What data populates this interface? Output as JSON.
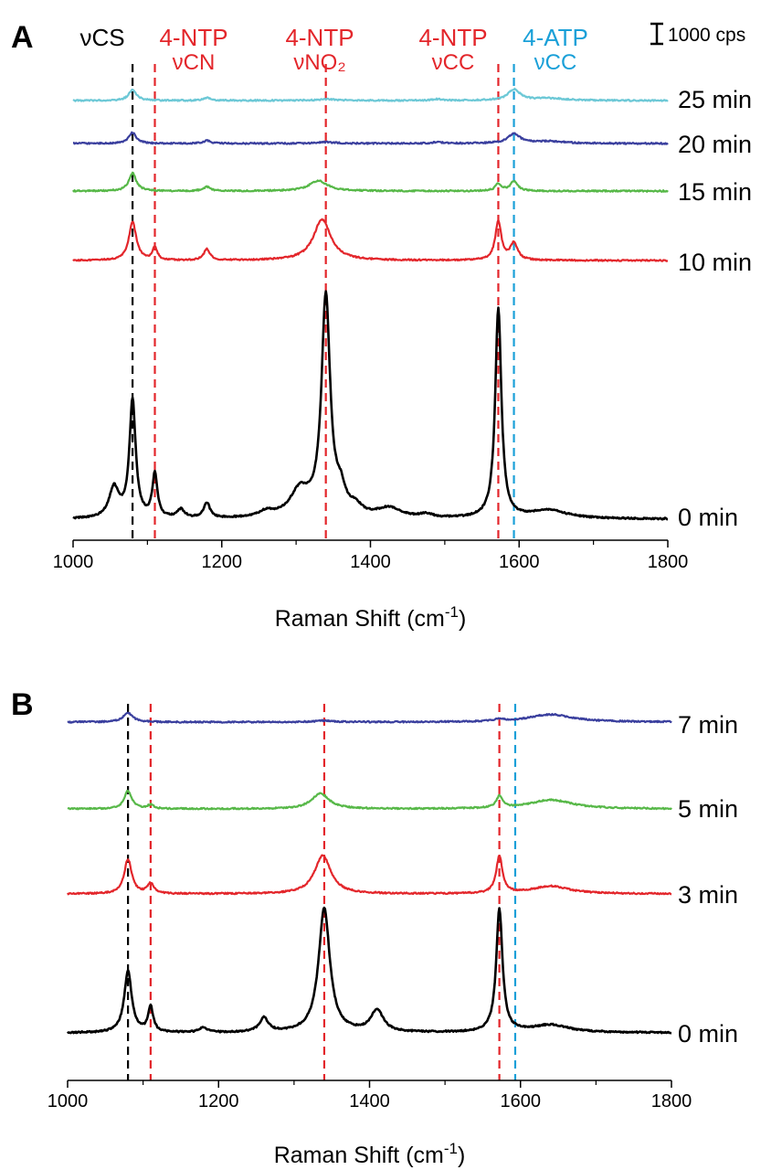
{
  "chart_data": [
    {
      "type": "line",
      "panel_label": "A",
      "xlabel_main": "Raman Shift (cm",
      "xlabel_sup": "-1",
      "xlabel_end": ")",
      "xlim": [
        1000,
        1800
      ],
      "x_ticks": [
        1000,
        1200,
        1400,
        1600,
        1800
      ],
      "scale_bar": {
        "label": "1000 cps",
        "value": 1000
      },
      "peak_labels": [
        {
          "line1": "νCS",
          "line2": "",
          "x": 1080,
          "color": "#000000"
        },
        {
          "line1": "4-NTP",
          "line2": "νCN",
          "x": 1110,
          "color": "#e3262b"
        },
        {
          "line1": "4-NTP",
          "line2": "νNO₂",
          "x": 1340,
          "color": "#e3262b"
        },
        {
          "line1": "4-NTP",
          "line2": "νCC",
          "x": 1572,
          "color": "#e3262b"
        },
        {
          "line1": "4-ATP",
          "line2": "νCC",
          "x": 1593,
          "color": "#1aa0d8"
        }
      ],
      "series": [
        {
          "name": "25 min",
          "color": "#6cc8d6",
          "baseline": 0,
          "peaks": [
            [
              1080,
              80,
              6
            ],
            [
              1180,
              20,
              6
            ],
            [
              1340,
              10,
              15
            ],
            [
              1490,
              10,
              8
            ],
            [
              1593,
              80,
              10
            ],
            [
              1640,
              15,
              25
            ]
          ]
        },
        {
          "name": "20 min",
          "color": "#3a3f9e",
          "baseline": 0,
          "peaks": [
            [
              1080,
              80,
              6
            ],
            [
              1180,
              20,
              6
            ],
            [
              1340,
              10,
              15
            ],
            [
              1490,
              10,
              8
            ],
            [
              1593,
              70,
              10
            ],
            [
              1640,
              15,
              25
            ]
          ]
        },
        {
          "name": "15 min",
          "color": "#57b848",
          "baseline": 0,
          "peaks": [
            [
              1080,
              130,
              6
            ],
            [
              1180,
              30,
              6
            ],
            [
              1330,
              75,
              15
            ],
            [
              1572,
              50,
              5
            ],
            [
              1593,
              70,
              6
            ]
          ]
        },
        {
          "name": "10 min",
          "color": "#e3262b",
          "baseline": 0,
          "peaks": [
            [
              1080,
              280,
              6
            ],
            [
              1110,
              90,
              4
            ],
            [
              1180,
              80,
              5
            ],
            [
              1335,
              300,
              14
            ],
            [
              1572,
              280,
              5
            ],
            [
              1593,
              120,
              6
            ]
          ]
        },
        {
          "name": "0 min",
          "color": "#000000",
          "baseline": 0,
          "peaks": [
            [
              1055,
              220,
              8
            ],
            [
              1080,
              860,
              5
            ],
            [
              1110,
              320,
              4
            ],
            [
              1145,
              60,
              6
            ],
            [
              1180,
              110,
              5
            ],
            [
              1260,
              40,
              12
            ],
            [
              1305,
              190,
              16
            ],
            [
              1340,
              1600,
              7
            ],
            [
              1360,
              150,
              8
            ],
            [
              1380,
              60,
              10
            ],
            [
              1425,
              70,
              20
            ],
            [
              1475,
              25,
              10
            ],
            [
              1572,
              1530,
              5
            ],
            [
              1640,
              60,
              30
            ]
          ]
        }
      ]
    },
    {
      "type": "line",
      "panel_label": "B",
      "xlabel_main": "Raman Shift (cm",
      "xlabel_sup": "-1",
      "xlabel_end": ")",
      "xlim": [
        1000,
        1800
      ],
      "x_ticks": [
        1000,
        1200,
        1400,
        1600,
        1800
      ],
      "peak_lines": [
        {
          "x": 1080,
          "color": "#000000"
        },
        {
          "x": 1110,
          "color": "#e3262b"
        },
        {
          "x": 1340,
          "color": "#e3262b"
        },
        {
          "x": 1572,
          "color": "#e3262b"
        },
        {
          "x": 1593,
          "color": "#1aa0d8"
        }
      ],
      "series": [
        {
          "name": "7 min",
          "color": "#3a3f9e",
          "baseline": 0,
          "peaks": [
            [
              1080,
              70,
              8
            ],
            [
              1340,
              10,
              15
            ],
            [
              1572,
              15,
              8
            ],
            [
              1640,
              60,
              35
            ]
          ]
        },
        {
          "name": "5 min",
          "color": "#57b848",
          "baseline": 0,
          "peaks": [
            [
              1080,
              140,
              6
            ],
            [
              1110,
              30,
              5
            ],
            [
              1335,
              120,
              14
            ],
            [
              1572,
              90,
              5
            ],
            [
              1640,
              70,
              35
            ]
          ]
        },
        {
          "name": "3 min",
          "color": "#e3262b",
          "baseline": 0,
          "peaks": [
            [
              1080,
              270,
              6
            ],
            [
              1110,
              80,
              5
            ],
            [
              1338,
              300,
              13
            ],
            [
              1572,
              290,
              5
            ],
            [
              1640,
              60,
              30
            ]
          ]
        },
        {
          "name": "0 min",
          "color": "#000000",
          "baseline": 0,
          "peaks": [
            [
              1080,
              480,
              6
            ],
            [
              1110,
              200,
              4
            ],
            [
              1180,
              40,
              6
            ],
            [
              1260,
              110,
              7
            ],
            [
              1340,
              970,
              9
            ],
            [
              1410,
              170,
              10
            ],
            [
              1572,
              960,
              5
            ],
            [
              1640,
              60,
              30
            ]
          ]
        }
      ]
    }
  ]
}
